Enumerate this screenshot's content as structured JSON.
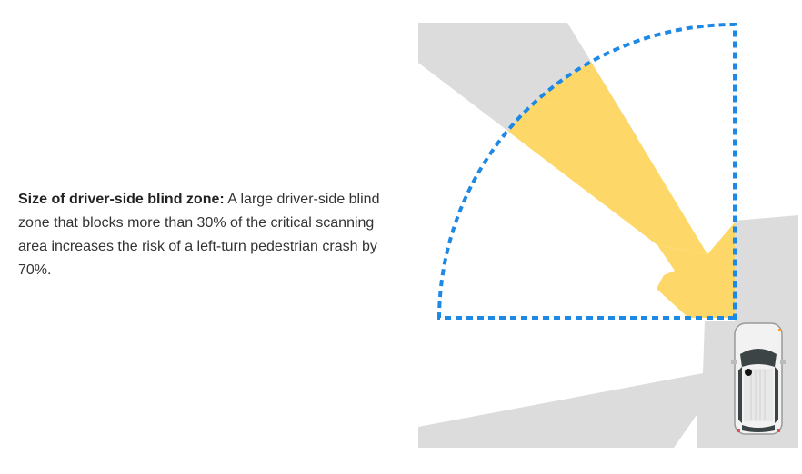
{
  "description": {
    "heading": "Size of driver-side blind zone:",
    "body": " A large driver-side blind zone that blocks more than 30% of the critical scanning area increases the risk of a left-turn pedestrian crash by 70%."
  },
  "diagram": {
    "colors": {
      "blind_zone": "#dcdcdc",
      "sight_line": "#fdd868",
      "scanning_area_outline": "#1e88e5"
    },
    "icons": [
      "car-top-view-icon",
      "sight-arrow-icon"
    ]
  }
}
